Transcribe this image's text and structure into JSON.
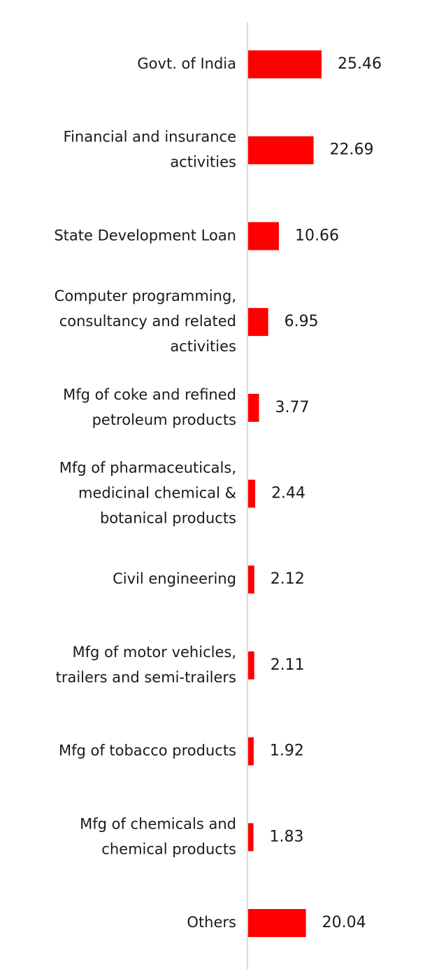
{
  "chart_data": {
    "type": "bar",
    "orientation": "horizontal",
    "title": "",
    "xlabel": "",
    "ylabel": "",
    "categories": [
      [
        "Govt. of India"
      ],
      [
        "Financial and insurance",
        "activities"
      ],
      [
        "State Development Loan"
      ],
      [
        "Computer programming,",
        "consultancy and related",
        "activities"
      ],
      [
        "Mfg of coke and refined",
        "petroleum products"
      ],
      [
        "Mfg of pharmaceuticals,",
        "medicinal chemical &",
        "botanical products"
      ],
      [
        "Civil engineering"
      ],
      [
        "Mfg of motor vehicles,",
        "trailers and semi-trailers"
      ],
      [
        "Mfg of tobacco products"
      ],
      [
        "Mfg of chemicals and",
        "chemical products"
      ],
      [
        "Others"
      ]
    ],
    "values": [
      25.46,
      22.69,
      10.66,
      6.95,
      3.77,
      2.44,
      2.12,
      2.11,
      1.92,
      1.83,
      20.04
    ],
    "value_labels": [
      "25.46",
      "22.69",
      "10.66",
      "6.95",
      "3.77",
      "2.44",
      "2.12",
      "2.11",
      "1.92",
      "1.83",
      "20.04"
    ],
    "xlim": [
      0,
      65
    ],
    "grid": false,
    "legend": "none",
    "bar_color": "#ff0000",
    "axis_color": "#d9d9d9"
  }
}
